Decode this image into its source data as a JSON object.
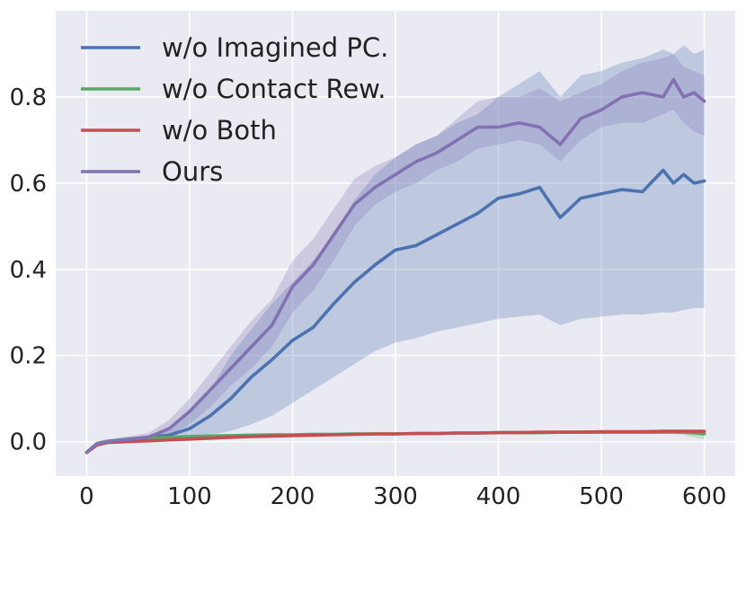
{
  "chart_data": {
    "type": "line",
    "title": "",
    "xlabel": "",
    "ylabel": "",
    "xlim": [
      -30,
      630
    ],
    "ylim": [
      -0.08,
      1.0
    ],
    "xticks": [
      0,
      100,
      200,
      300,
      400,
      500,
      600
    ],
    "xtick_labels": [
      "0",
      "100",
      "200",
      "300",
      "400",
      "500",
      "600"
    ],
    "yticks": [
      0.0,
      0.2,
      0.4,
      0.6,
      0.8
    ],
    "ytick_labels": [
      "0.0",
      "0.2",
      "0.4",
      "0.6",
      "0.8"
    ],
    "grid": true,
    "legend_position": "top-left",
    "x": [
      0,
      10,
      20,
      40,
      60,
      80,
      100,
      120,
      140,
      160,
      180,
      200,
      220,
      240,
      260,
      280,
      300,
      320,
      340,
      360,
      380,
      400,
      420,
      440,
      460,
      480,
      500,
      520,
      540,
      560,
      570,
      580,
      590,
      600
    ],
    "series": [
      {
        "name": "w/o Imagined PC.",
        "color": "#4c72b0",
        "values": [
          -0.025,
          -0.005,
          0.0,
          0.005,
          0.01,
          0.015,
          0.03,
          0.06,
          0.1,
          0.15,
          0.19,
          0.235,
          0.265,
          0.32,
          0.37,
          0.41,
          0.445,
          0.455,
          0.48,
          0.505,
          0.53,
          0.565,
          0.575,
          0.59,
          0.52,
          0.565,
          0.575,
          0.585,
          0.58,
          0.63,
          0.6,
          0.62,
          0.6,
          0.605
        ],
        "band_lower": [
          -0.03,
          -0.01,
          -0.005,
          0.0,
          0.005,
          0.008,
          0.012,
          0.015,
          0.025,
          0.04,
          0.06,
          0.09,
          0.12,
          0.15,
          0.18,
          0.21,
          0.23,
          0.24,
          0.255,
          0.265,
          0.275,
          0.285,
          0.29,
          0.295,
          0.27,
          0.285,
          0.29,
          0.295,
          0.295,
          0.3,
          0.3,
          0.305,
          0.31,
          0.31
        ],
        "band_upper": [
          -0.02,
          0.0,
          0.005,
          0.01,
          0.015,
          0.03,
          0.07,
          0.12,
          0.2,
          0.26,
          0.32,
          0.37,
          0.42,
          0.48,
          0.56,
          0.62,
          0.66,
          0.69,
          0.71,
          0.74,
          0.76,
          0.8,
          0.83,
          0.86,
          0.8,
          0.85,
          0.86,
          0.88,
          0.89,
          0.91,
          0.9,
          0.92,
          0.9,
          0.91
        ]
      },
      {
        "name": "w/o Contact Rew.",
        "color": "#55a868",
        "values": [
          -0.025,
          -0.005,
          0.0,
          0.005,
          0.008,
          0.01,
          0.012,
          0.013,
          0.014,
          0.015,
          0.016,
          0.016,
          0.017,
          0.017,
          0.018,
          0.018,
          0.018,
          0.019,
          0.019,
          0.02,
          0.02,
          0.021,
          0.021,
          0.021,
          0.022,
          0.022,
          0.022,
          0.022,
          0.022,
          0.022,
          0.022,
          0.022,
          0.02,
          0.018
        ],
        "band_lower": [
          -0.03,
          -0.01,
          -0.005,
          0.0,
          0.004,
          0.006,
          0.008,
          0.009,
          0.01,
          0.011,
          0.012,
          0.012,
          0.013,
          0.013,
          0.014,
          0.014,
          0.014,
          0.015,
          0.015,
          0.016,
          0.016,
          0.017,
          0.017,
          0.017,
          0.018,
          0.018,
          0.018,
          0.018,
          0.018,
          0.018,
          0.018,
          0.016,
          0.01,
          0.005
        ],
        "band_upper": [
          -0.02,
          0.0,
          0.005,
          0.01,
          0.012,
          0.014,
          0.016,
          0.017,
          0.018,
          0.019,
          0.02,
          0.02,
          0.021,
          0.021,
          0.022,
          0.022,
          0.022,
          0.023,
          0.023,
          0.024,
          0.024,
          0.025,
          0.025,
          0.025,
          0.026,
          0.026,
          0.026,
          0.026,
          0.026,
          0.026,
          0.026,
          0.028,
          0.028,
          0.028
        ]
      },
      {
        "name": "w/o Both",
        "color": "#c44e52",
        "values": [
          -0.025,
          -0.008,
          -0.002,
          0.0,
          0.002,
          0.004,
          0.006,
          0.008,
          0.01,
          0.012,
          0.013,
          0.014,
          0.015,
          0.016,
          0.017,
          0.018,
          0.018,
          0.019,
          0.019,
          0.02,
          0.02,
          0.021,
          0.021,
          0.022,
          0.022,
          0.022,
          0.023,
          0.023,
          0.023,
          0.024,
          0.024,
          0.024,
          0.024,
          0.024
        ],
        "band_lower": [
          -0.028,
          -0.01,
          -0.004,
          -0.002,
          0.0,
          0.002,
          0.004,
          0.006,
          0.008,
          0.01,
          0.011,
          0.012,
          0.013,
          0.014,
          0.015,
          0.016,
          0.016,
          0.017,
          0.017,
          0.018,
          0.018,
          0.019,
          0.019,
          0.02,
          0.02,
          0.02,
          0.021,
          0.021,
          0.021,
          0.022,
          0.022,
          0.022,
          0.022,
          0.022
        ],
        "band_upper": [
          -0.022,
          -0.006,
          0.0,
          0.002,
          0.004,
          0.006,
          0.008,
          0.01,
          0.012,
          0.014,
          0.015,
          0.016,
          0.017,
          0.018,
          0.019,
          0.02,
          0.02,
          0.021,
          0.021,
          0.022,
          0.022,
          0.023,
          0.023,
          0.024,
          0.024,
          0.024,
          0.025,
          0.025,
          0.025,
          0.026,
          0.026,
          0.026,
          0.026,
          0.026
        ]
      },
      {
        "name": "Ours",
        "color": "#8172b2",
        "values": [
          -0.025,
          -0.005,
          0.0,
          0.005,
          0.01,
          0.03,
          0.07,
          0.12,
          0.17,
          0.22,
          0.27,
          0.36,
          0.41,
          0.48,
          0.55,
          0.59,
          0.62,
          0.65,
          0.67,
          0.7,
          0.73,
          0.73,
          0.74,
          0.73,
          0.69,
          0.75,
          0.77,
          0.8,
          0.81,
          0.8,
          0.84,
          0.8,
          0.81,
          0.79
        ],
        "band_lower": [
          -0.03,
          -0.01,
          -0.005,
          0.0,
          0.005,
          0.015,
          0.04,
          0.08,
          0.13,
          0.17,
          0.22,
          0.3,
          0.35,
          0.42,
          0.5,
          0.55,
          0.58,
          0.6,
          0.63,
          0.65,
          0.68,
          0.69,
          0.7,
          0.69,
          0.65,
          0.7,
          0.73,
          0.74,
          0.74,
          0.76,
          0.77,
          0.74,
          0.72,
          0.71
        ],
        "band_upper": [
          -0.02,
          0.0,
          0.005,
          0.012,
          0.02,
          0.05,
          0.1,
          0.16,
          0.22,
          0.28,
          0.33,
          0.42,
          0.47,
          0.54,
          0.61,
          0.64,
          0.66,
          0.69,
          0.71,
          0.75,
          0.79,
          0.8,
          0.8,
          0.82,
          0.79,
          0.81,
          0.83,
          0.86,
          0.88,
          0.89,
          0.9,
          0.87,
          0.86,
          0.85
        ]
      }
    ]
  }
}
